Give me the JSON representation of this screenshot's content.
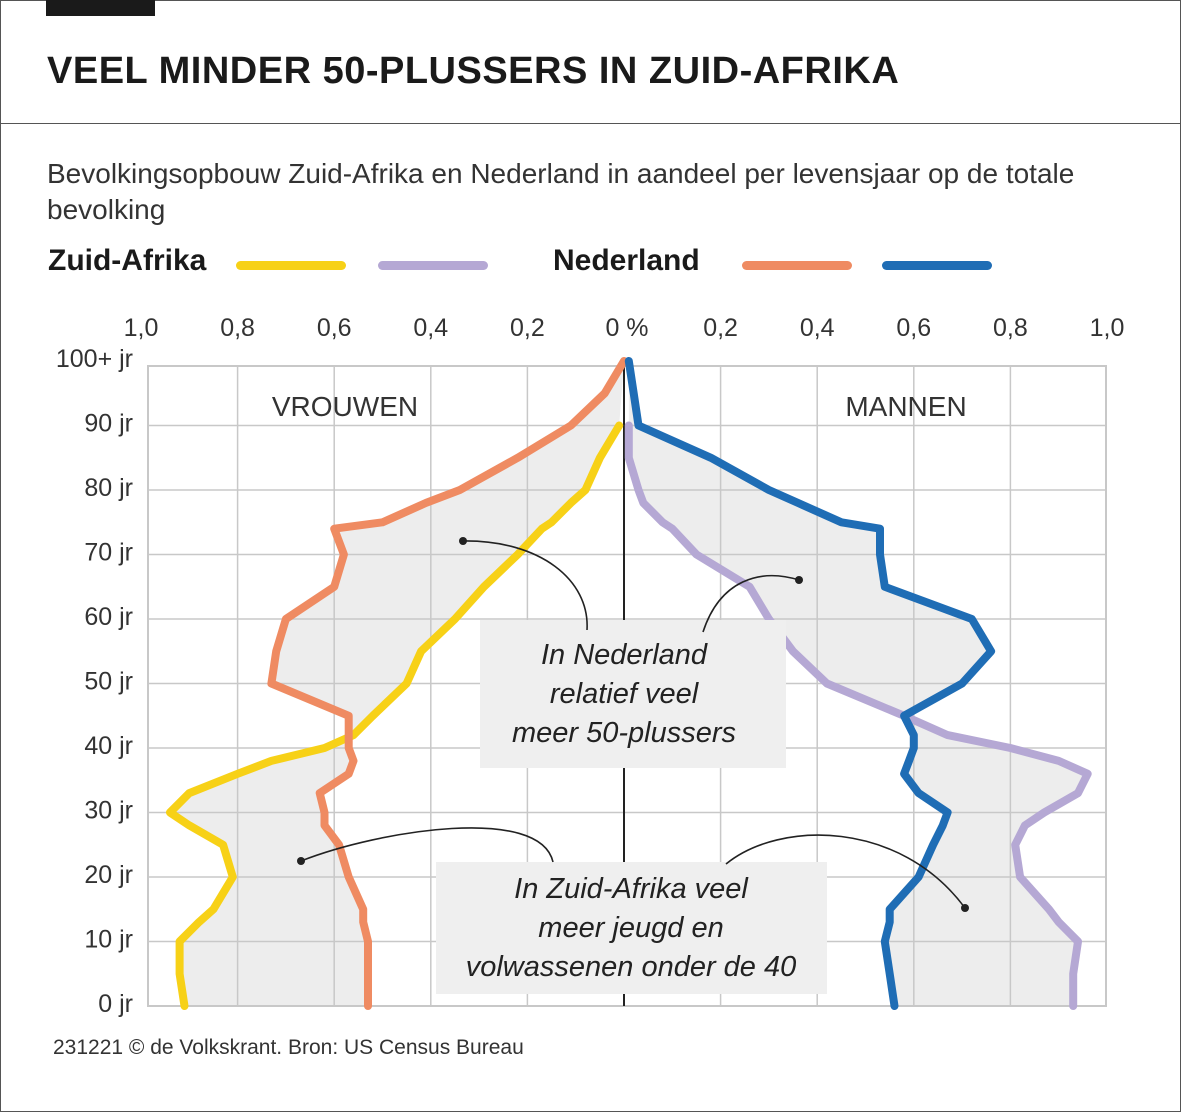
{
  "title": "VEEL MINDER 50-PLUSSERS IN ZUID-AFRIKA",
  "subtitle": "Bevolkingsopbouw Zuid-Afrika en Nederland in aandeel per levensjaar op de totale bevolking",
  "legend": {
    "za_label": "Zuid-Afrika",
    "nl_label": "Nederland"
  },
  "colors": {
    "za_women": "#f7d117",
    "za_men": "#b5a8d4",
    "nl_women": "#ef8b62",
    "nl_men": "#1f6db5",
    "fill": "#ededed",
    "grid": "#c8c8c8"
  },
  "labels": {
    "women": "VROUWEN",
    "men": "MANNEN"
  },
  "annotations": {
    "nl": [
      "In Nederland",
      "relatief veel",
      "meer 50-plussers"
    ],
    "za": [
      "In Zuid-Afrika veel",
      "meer jeugd en",
      "volwassenen onder de 40"
    ]
  },
  "source": "231221 © de Volkskrant. Bron: US Census Bureau",
  "chart_data": {
    "type": "line",
    "x_unit": "%",
    "x_ticks_left": [
      "1,0",
      "0,8",
      "0,6",
      "0,4",
      "0,2"
    ],
    "x_tick_center": "0 %",
    "x_ticks_right": [
      "0,2",
      "0,4",
      "0,6",
      "0,8",
      "1,0"
    ],
    "y_ticks": [
      "0 jr",
      "10 jr",
      "20 jr",
      "30 jr",
      "40 jr",
      "50 jr",
      "60 jr",
      "70 jr",
      "80 jr",
      "90 jr",
      "100+ jr"
    ],
    "xlim": [
      0,
      1.0
    ],
    "ylim": [
      0,
      100
    ],
    "ages": [
      0,
      5,
      10,
      13,
      15,
      20,
      25,
      28,
      30,
      33,
      36,
      38,
      40,
      42,
      45,
      50,
      55,
      60,
      65,
      70,
      74,
      75,
      78,
      80,
      85,
      90,
      95,
      100
    ],
    "series": [
      {
        "side": "left",
        "color": "#f7d117",
        "values": [
          0.91,
          0.92,
          0.92,
          0.88,
          0.85,
          0.81,
          0.83,
          0.9,
          0.94,
          0.9,
          0.8,
          0.73,
          0.62,
          0.56,
          0.52,
          0.45,
          0.42,
          0.35,
          0.29,
          0.22,
          0.17,
          0.15,
          0.11,
          0.08,
          0.05,
          0.01,
          null,
          null
        ]
      },
      {
        "side": "left",
        "color": "#ef8b62",
        "values": [
          0.53,
          0.53,
          0.53,
          0.54,
          0.54,
          0.57,
          0.59,
          0.62,
          0.62,
          0.63,
          0.57,
          0.56,
          0.57,
          0.57,
          0.57,
          0.73,
          0.72,
          0.7,
          0.6,
          0.58,
          0.6,
          0.5,
          0.41,
          0.34,
          0.22,
          0.11,
          0.04,
          0.0
        ]
      },
      {
        "side": "right",
        "color": "#b5a8d4",
        "values": [
          0.93,
          0.93,
          0.94,
          0.9,
          0.88,
          0.82,
          0.81,
          0.83,
          0.87,
          0.94,
          0.96,
          0.9,
          0.8,
          0.67,
          0.58,
          0.42,
          0.35,
          0.3,
          0.26,
          0.15,
          0.1,
          0.08,
          0.04,
          0.03,
          0.01,
          0.01,
          null,
          null
        ]
      },
      {
        "side": "right",
        "color": "#1f6db5",
        "values": [
          0.56,
          0.55,
          0.54,
          0.55,
          0.55,
          0.61,
          0.64,
          0.66,
          0.67,
          0.61,
          0.58,
          0.59,
          0.6,
          0.6,
          0.58,
          0.7,
          0.76,
          0.72,
          0.54,
          0.53,
          0.53,
          0.45,
          0.36,
          0.3,
          0.18,
          0.03,
          0.02,
          0.01
        ]
      }
    ]
  }
}
